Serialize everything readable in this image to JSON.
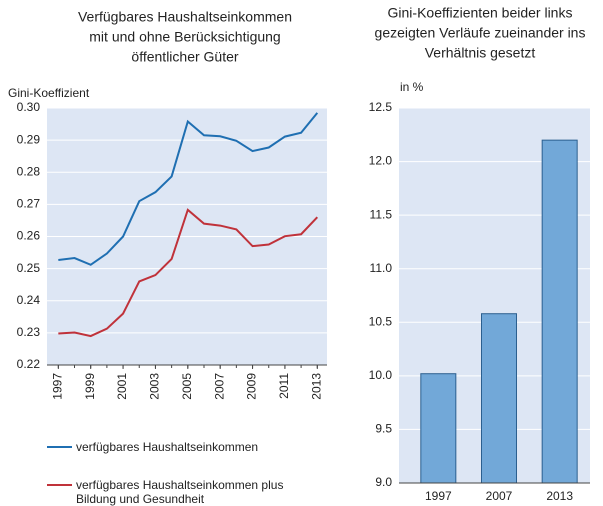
{
  "chart_data": [
    {
      "type": "line",
      "title": [
        "Verfügbares Haushaltseinkommen",
        "mit und ohne Berücksichtigung",
        "öffentlicher Güter"
      ],
      "y_label": "Gini-Koeffizient",
      "x": [
        1997,
        1998,
        1999,
        2000,
        2001,
        2002,
        2003,
        2004,
        2005,
        2006,
        2007,
        2008,
        2009,
        2010,
        2011,
        2012,
        2013
      ],
      "xlim": [
        1996.3,
        2013.6
      ],
      "xticks": [
        1997,
        1999,
        2001,
        2003,
        2005,
        2007,
        2009,
        2011,
        2013
      ],
      "ylim": [
        0.22,
        0.3
      ],
      "yticks": [
        0.22,
        0.23,
        0.24,
        0.25,
        0.26,
        0.27,
        0.28,
        0.29,
        {
          "value": 0.3,
          "label": "0.30"
        }
      ],
      "grid": true,
      "series": [
        {
          "name": "verfügbares Haushaltseinkommen",
          "color": "#1f6fb2",
          "values": [
            0.2527,
            0.2533,
            0.2512,
            0.2547,
            0.26,
            0.271,
            0.2738,
            0.2787,
            0.2958,
            0.2915,
            0.2912,
            0.2898,
            0.2866,
            0.2877,
            0.2911,
            0.2923,
            0.2985
          ]
        },
        {
          "name": "verfügbares Haushaltseinkommen plus Bildung und Gesundheit",
          "color": "#c0323a",
          "values": [
            0.2298,
            0.2301,
            0.229,
            0.2313,
            0.236,
            0.246,
            0.248,
            0.253,
            0.2683,
            0.264,
            0.2634,
            0.2622,
            0.257,
            0.2575,
            0.2601,
            0.2607,
            0.266
          ]
        }
      ]
    },
    {
      "type": "bar",
      "title": [
        "Gini-Koeffizienten beider links",
        "gezeigten Verläufe zueinander ins",
        "Verhältnis gesetzt"
      ],
      "y_label": "in %",
      "categories": [
        "1997",
        "2007",
        "2013"
      ],
      "values": [
        10.02,
        10.58,
        12.2
      ],
      "color": "#72a8d8",
      "ylim": [
        9,
        12.5
      ],
      "yticks": [
        {
          "value": 9,
          "label": "9.0"
        },
        9.5,
        {
          "value": 10,
          "label": "10.0"
        },
        10.5,
        {
          "value": 11,
          "label": "11.0"
        },
        11.5,
        {
          "value": 12,
          "label": "12.0"
        },
        12.5
      ],
      "grid": true
    }
  ]
}
